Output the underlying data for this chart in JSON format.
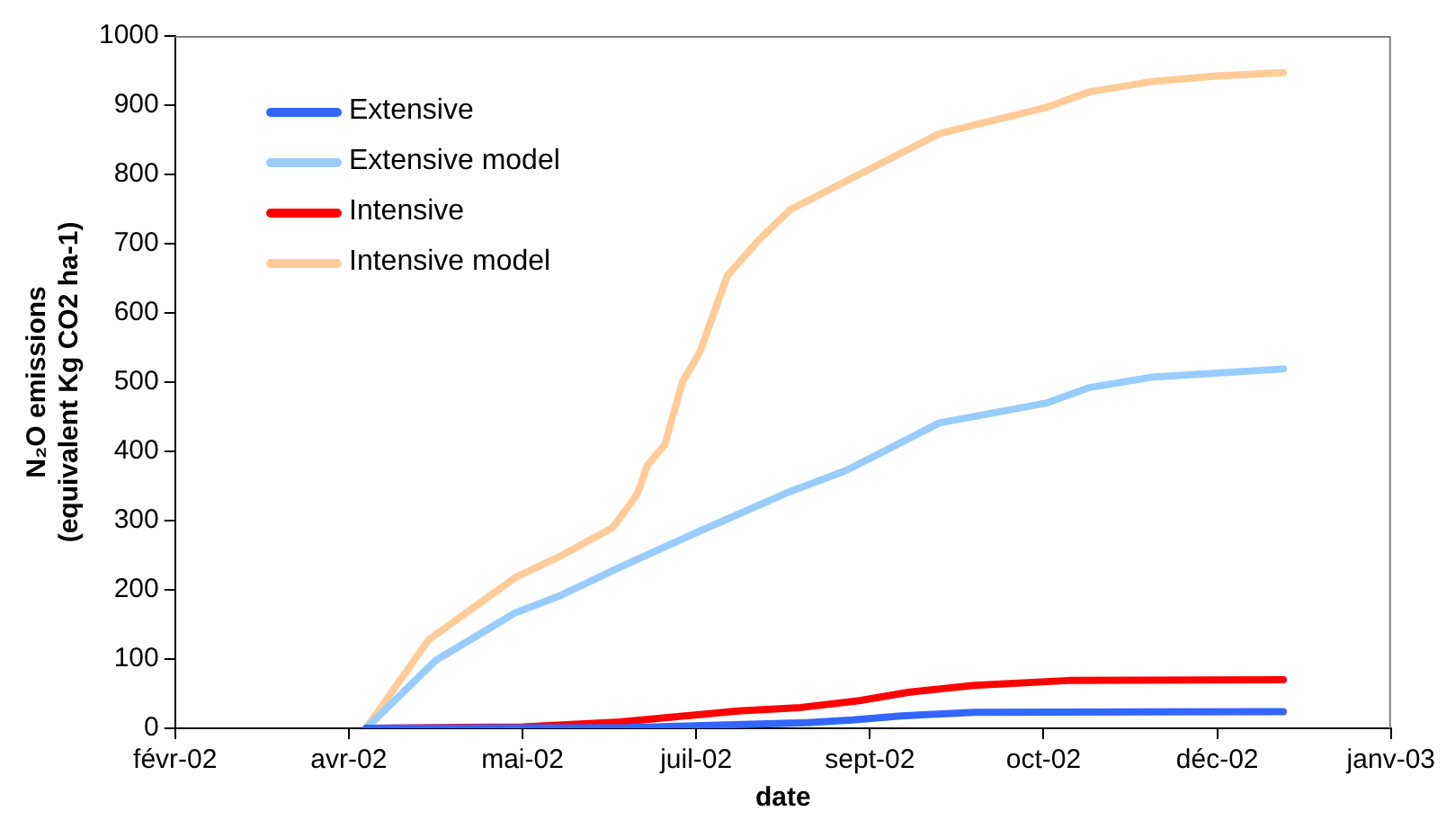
{
  "chart_data": {
    "type": "line",
    "xlabel": "date",
    "ylabel": "N₂O emissions (equivalent Kg CO2 ha-1)",
    "xlim": [
      "2002-02-15",
      "2003-01-31"
    ],
    "xticks": [
      {
        "value": "2002-02-15",
        "label": "févr-02"
      },
      {
        "value": "2002-04-06",
        "label": "avr-02"
      },
      {
        "value": "2002-05-26",
        "label": "mai-02"
      },
      {
        "value": "2002-07-15",
        "label": "juil-02"
      },
      {
        "value": "2002-09-03",
        "label": "sept-02"
      },
      {
        "value": "2002-10-23",
        "label": "oct-02"
      },
      {
        "value": "2002-12-12",
        "label": "déc-02"
      },
      {
        "value": "2003-01-31",
        "label": "janv-03"
      }
    ],
    "ylim": [
      0,
      1000
    ],
    "yticks": [
      0,
      100,
      200,
      300,
      400,
      500,
      600,
      700,
      800,
      900,
      1000
    ],
    "grid": false,
    "legend": "top left",
    "marker": "none",
    "line_style": "solid",
    "series": [
      {
        "name": "Extensive",
        "color": "#3366ff",
        "x": [
          "2002-04-11",
          "2002-06-25",
          "2002-08-16",
          "2002-08-29",
          "2002-09-12",
          "2002-10-03",
          "2002-12-31"
        ],
        "values": [
          0,
          1,
          8,
          12,
          18,
          23,
          24
        ]
      },
      {
        "name": "Extensive model",
        "color": "#99ccff",
        "x": [
          "2002-04-11",
          "2002-05-01",
          "2002-05-24",
          "2002-06-06",
          "2002-06-24",
          "2002-07-17",
          "2002-08-11",
          "2002-08-27",
          "2002-09-23",
          "2002-10-24",
          "2002-11-05",
          "2002-11-23",
          "2002-12-31"
        ],
        "values": [
          0,
          98,
          167,
          192,
          235,
          287,
          342,
          372,
          441,
          470,
          492,
          507,
          519
        ]
      },
      {
        "name": "Intensive",
        "color": "#ff0000",
        "x": [
          "2002-04-11",
          "2002-05-26",
          "2002-06-23",
          "2002-07-27",
          "2002-08-14",
          "2002-08-31",
          "2002-09-14",
          "2002-10-03",
          "2002-10-30",
          "2002-12-31"
        ],
        "values": [
          0,
          2,
          9,
          25,
          30,
          40,
          52,
          62,
          69,
          70
        ]
      },
      {
        "name": "Intensive model",
        "color": "#ffcc99",
        "x": [
          "2002-04-11",
          "2002-04-29",
          "2002-05-24",
          "2002-06-06",
          "2002-06-21",
          "2002-06-28",
          "2002-07-01",
          "2002-07-06",
          "2002-07-11",
          "2002-07-16",
          "2002-07-24",
          "2002-08-02",
          "2002-08-11",
          "2002-08-27",
          "2002-09-23",
          "2002-10-24",
          "2002-11-05",
          "2002-11-23",
          "2002-12-11",
          "2002-12-31"
        ],
        "values": [
          0,
          128,
          218,
          249,
          290,
          338,
          380,
          410,
          500,
          543,
          654,
          705,
          749,
          790,
          859,
          897,
          919,
          934,
          942,
          947
        ]
      }
    ]
  }
}
